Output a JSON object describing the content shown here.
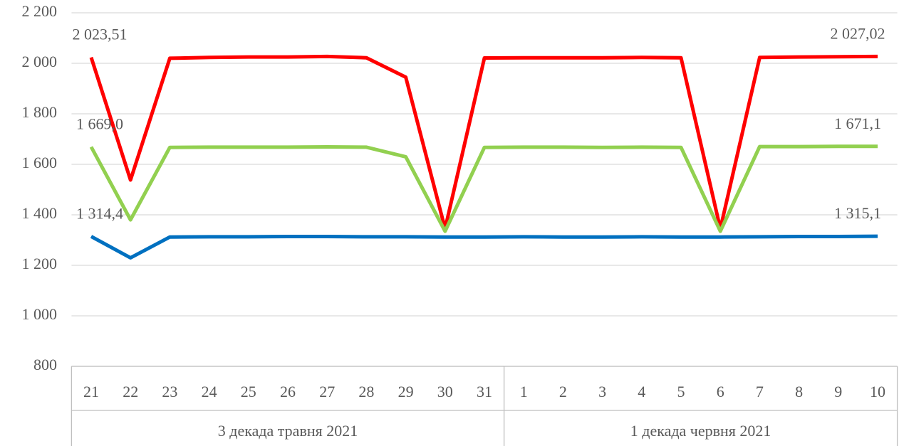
{
  "chart_data": {
    "type": "line",
    "category_groups": [
      {
        "name": "3 декада травня 2021",
        "categories": [
          "21",
          "22",
          "23",
          "24",
          "25",
          "26",
          "27",
          "28",
          "29",
          "30",
          "31"
        ]
      },
      {
        "name": "1 декада червня 2021",
        "categories": [
          "1",
          "2",
          "3",
          "4",
          "5",
          "6",
          "7",
          "8",
          "9",
          "10"
        ]
      }
    ],
    "series": [
      {
        "color": "#ff0000",
        "values": [
          2023.51,
          1538,
          2020,
          2023,
          2025,
          2025,
          2027,
          2022,
          1945,
          1345,
          2021,
          2022,
          2022,
          2022,
          2023,
          2022,
          1345,
          2023,
          2025,
          2026,
          2027.02
        ],
        "value_labels": [
          "2 023,51",
          null,
          null,
          null,
          null,
          null,
          null,
          null,
          null,
          null,
          null,
          null,
          null,
          null,
          null,
          null,
          null,
          null,
          null,
          null,
          "2 027,02"
        ]
      },
      {
        "color": "#92d050",
        "values": [
          1669.0,
          1380,
          1667,
          1668,
          1668,
          1668,
          1669,
          1668,
          1630,
          1335,
          1667,
          1668,
          1668,
          1667,
          1668,
          1667,
          1335,
          1670,
          1670,
          1671,
          1671.1
        ],
        "value_labels": [
          "1 669,0",
          null,
          null,
          null,
          null,
          null,
          null,
          null,
          null,
          null,
          null,
          null,
          null,
          null,
          null,
          null,
          null,
          null,
          null,
          null,
          "1 671,1"
        ]
      },
      {
        "color": "#0070c0",
        "values": [
          1314.4,
          1230,
          1312,
          1313,
          1313,
          1314,
          1314,
          1313,
          1313,
          1312,
          1312,
          1313,
          1312,
          1312,
          1313,
          1312,
          1312,
          1313,
          1314,
          1314,
          1315.1
        ],
        "value_labels": [
          "1 314,4",
          null,
          null,
          null,
          null,
          null,
          null,
          null,
          null,
          null,
          null,
          null,
          null,
          null,
          null,
          null,
          null,
          null,
          null,
          null,
          "1 315,1"
        ]
      }
    ],
    "ylim": [
      800,
      2200
    ],
    "yticks": [
      800,
      {
        "value": 1000,
        "label": "1 000"
      },
      {
        "value": 1200,
        "label": "1 200"
      },
      {
        "value": 1400,
        "label": "1 400"
      },
      {
        "value": 1600,
        "label": "1 600"
      },
      {
        "value": 1800,
        "label": "1 800"
      },
      {
        "value": 2000,
        "label": "2 000"
      },
      {
        "value": 2200,
        "label": "2 200"
      }
    ],
    "grid": true
  }
}
